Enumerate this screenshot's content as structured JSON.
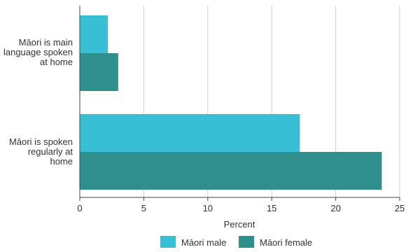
{
  "chart_data": {
    "type": "bar",
    "orientation": "horizontal",
    "categories": [
      [
        "Māori is main",
        "language spoken",
        "at home"
      ],
      [
        "Māori is spoken",
        "regularly at",
        "home"
      ]
    ],
    "series": [
      {
        "name": "Māori male",
        "color": "#38bfd5",
        "values": [
          2.2,
          17.2
        ]
      },
      {
        "name": "Māori female",
        "color": "#2e8f8c",
        "values": [
          3.0,
          23.6
        ]
      }
    ],
    "xlabel": "Percent",
    "xlim": [
      0,
      25
    ],
    "xticks": [
      0,
      5,
      10,
      15,
      20,
      25
    ],
    "grid": "vertical",
    "legend_position": "bottom-center"
  }
}
